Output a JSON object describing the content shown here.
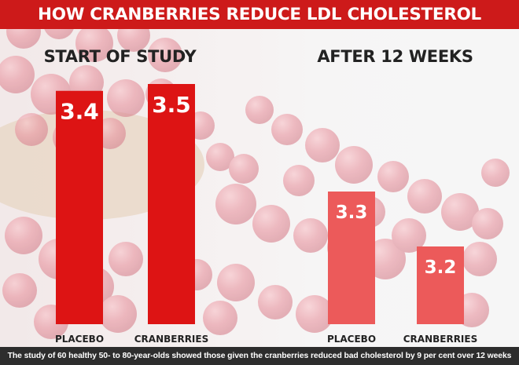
{
  "title": "HOW CRANBERRIES REDUCE LDL CHOLESTEROL",
  "caption": "The study of 60 healthy 50- to 80-year-olds showed those given the cranberries reduced bad cholesterol by 9 per cent over 12 weeks",
  "colors": {
    "title_bg": "#cd1a1a",
    "start_bars": "#dd1414",
    "after_bars": "#ec5a5a",
    "caption_bg": "#2d2d2d"
  },
  "chart_data": [
    {
      "type": "bar",
      "title": "START OF STUDY",
      "categories": [
        "PLACEBO",
        "CRANBERRIES"
      ],
      "values": [
        3.4,
        3.5
      ],
      "value_labels": [
        "3.4",
        "3.5"
      ]
    },
    {
      "type": "bar",
      "title": "AFTER 12 WEEKS",
      "categories": [
        "PLACEBO",
        "CRANBERRIES"
      ],
      "values": [
        3.3,
        3.2
      ],
      "value_labels": [
        "3.3",
        "3.2"
      ]
    }
  ]
}
